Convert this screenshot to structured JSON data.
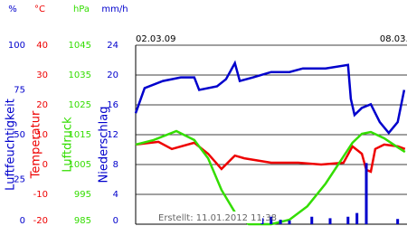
{
  "chart_data": {
    "type": "line",
    "xlim": [
      0,
      6.67
    ],
    "xticks": [
      {
        "value": 0,
        "label": "02.03.09"
      },
      {
        "value": 6,
        "label": "08.03.09"
      }
    ],
    "footer": "Erstellt: 11.01.2012 11:38",
    "axes": [
      {
        "unit": "%",
        "title": "Luftfeuchtigkeit",
        "color": "#0000cc",
        "ylim": [
          0,
          100
        ],
        "yticks": [
          0,
          25,
          50,
          75,
          100
        ]
      },
      {
        "unit": "°C",
        "title": "Temperatur",
        "color": "#ee0000",
        "ylim": [
          -20,
          40
        ],
        "yticks": [
          -20,
          -10,
          0,
          10,
          20,
          30,
          40
        ]
      },
      {
        "unit": "hPa",
        "title": "Luftdruck",
        "color": "#33dd00",
        "ylim": [
          985,
          1045
        ],
        "yticks": [
          985,
          995,
          1005,
          1015,
          1025,
          1035,
          1045
        ]
      },
      {
        "unit": "mm/h",
        "title": "Niederschlag",
        "color": "#0000cc",
        "ylim": [
          0,
          24
        ],
        "yticks": [
          0,
          4,
          8,
          12,
          16,
          20,
          24
        ]
      }
    ],
    "series": [
      {
        "axis": 0,
        "color": "#0000cc",
        "type": "line",
        "x": [
          0,
          0.22,
          0.67,
          1.11,
          1.44,
          1.56,
          2,
          2.22,
          2.44,
          2.56,
          2.89,
          3.33,
          3.78,
          4.11,
          4.67,
          5.22,
          5.29,
          5.38,
          5.56,
          5.78,
          6,
          6.22,
          6.44,
          6.6
        ],
        "values": [
          62,
          76,
          80,
          82,
          82,
          75,
          77,
          81,
          90,
          80,
          82,
          85,
          85,
          87,
          87,
          89,
          70,
          61,
          65,
          67,
          57,
          51,
          57,
          75
        ]
      },
      {
        "axis": 1,
        "color": "#ee0000",
        "type": "line",
        "x": [
          0,
          0.56,
          0.89,
          1.44,
          1.78,
          2.11,
          2.44,
          2.67,
          3.33,
          4,
          4.56,
          5.11,
          5.33,
          5.56,
          5.67,
          5.78,
          5.89,
          6.11,
          6.44,
          6.62
        ],
        "values": [
          6.7,
          7.6,
          5.2,
          7.3,
          3.6,
          -1.5,
          3,
          2.1,
          0.6,
          0.6,
          0,
          0.6,
          6.1,
          3.6,
          -1.8,
          -2.4,
          5.2,
          6.7,
          6.1,
          5.2
        ]
      },
      {
        "axis": 2,
        "color": "#33dd00",
        "type": "line",
        "x": [
          0,
          0.44,
          1,
          1.44,
          1.78,
          2.11,
          2.44,
          2.78,
          3.33,
          3.78,
          4.22,
          4.67,
          5.11,
          5.33,
          5.56,
          5.78,
          6.11,
          6.44,
          6.62
        ],
        "values": [
          1011.7,
          1013.2,
          1016.2,
          1013.2,
          1007.1,
          996.5,
          989,
          985,
          985,
          986.5,
          991,
          998.6,
          1007.7,
          1012.3,
          1015.3,
          1015.9,
          1013.8,
          1010.8,
          1009.2
        ]
      },
      {
        "axis": 3,
        "color": "#0000cc",
        "type": "bar",
        "x": [
          3.11,
          3.33,
          3.56,
          3.78,
          4.33,
          4.78,
          5.22,
          5.44,
          5.67,
          6.44
        ],
        "values": [
          0.8,
          1,
          0.6,
          0.5,
          1,
          0.8,
          1,
          1.5,
          8.2,
          0.7
        ]
      }
    ]
  }
}
